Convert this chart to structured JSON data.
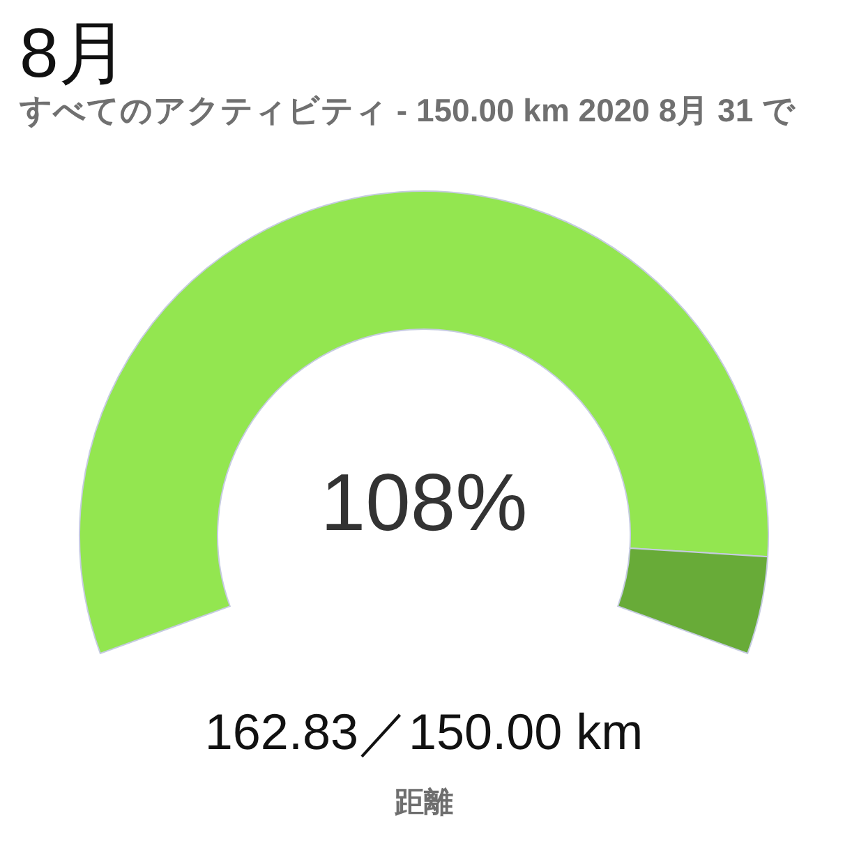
{
  "chart_data": {
    "type": "donut",
    "title": "8月",
    "subtitle": "すべてのアクティビティ - 150.00 km 2020 8月 31 で",
    "categories": [
      null,
      null
    ],
    "values": [
      92.5,
      7.5
    ],
    "colors": [
      "#93e650",
      "#68ab38"
    ],
    "annotations": [
      "108%",
      "162.83／150.00 km",
      "距離"
    ]
  }
}
